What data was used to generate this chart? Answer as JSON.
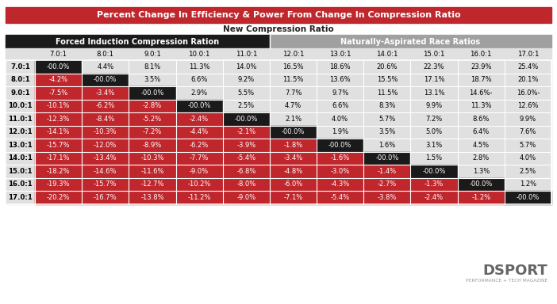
{
  "title": "Percent Change In Efficiency & Power From Change In Compression Ratio",
  "subtitle": "New Compression Ratio",
  "header_left": "Forced Induction Compression Ration",
  "header_right": "Naturally-Aspirated Race Ratios",
  "col_headers": [
    "7.0:1",
    "8.0:1",
    "9.0:1",
    "10.0:1",
    "11.0:1",
    "12.0:1",
    "13.0:1",
    "14.0:1",
    "15.0:1",
    "16.0:1",
    "17.0:1"
  ],
  "row_headers": [
    "7.0:1",
    "8.0:1",
    "9.0:1",
    "10.0:1",
    "11.0:1",
    "12.0:1",
    "13.0:1",
    "14.0:1",
    "15.0:1",
    "16.0:1",
    "17.0:1"
  ],
  "table_data": [
    [
      "-00.0%",
      "4.4%",
      "8.1%",
      "11.3%",
      "14.0%",
      "16.5%",
      "18.6%",
      "20.6%",
      "22.3%",
      "23.9%",
      "25.4%"
    ],
    [
      "-4.2%",
      "-00.0%",
      "3.5%",
      "6.6%",
      "9.2%",
      "11.5%",
      "13.6%",
      "15.5%",
      "17.1%",
      "18.7%",
      "20.1%"
    ],
    [
      "-7.5%",
      "-3.4%",
      "-00.0%",
      "2.9%",
      "5.5%",
      "7.7%",
      "9.7%",
      "11.5%",
      "13.1%",
      "14.6%-",
      "16.0%-"
    ],
    [
      "-10.1%",
      "-6.2%",
      "-2.8%",
      "-00.0%",
      "2.5%",
      "4.7%",
      "6.6%",
      "8.3%",
      "9.9%",
      "11.3%",
      "12.6%"
    ],
    [
      "-12.3%",
      "-8.4%",
      "-5.2%",
      "-2.4%",
      "-00.0%",
      "2.1%",
      "4.0%",
      "5.7%",
      "7.2%",
      "8.6%",
      "9.9%"
    ],
    [
      "-14.1%",
      "-10.3%",
      "-7.2%",
      "-4.4%",
      "-2.1%",
      "-00.0%",
      "1.9%",
      "3.5%",
      "5.0%",
      "6.4%",
      "7.6%"
    ],
    [
      "-15.7%",
      "-12.0%",
      "-8.9%",
      "-6.2%",
      "-3.9%",
      "-1.8%",
      "-00.0%",
      "1.6%",
      "3.1%",
      "4.5%",
      "5.7%"
    ],
    [
      "-17.1%",
      "-13.4%",
      "-10.3%",
      "-7.7%",
      "-5.4%",
      "-3.4%",
      "-1.6%",
      "-00.0%",
      "1.5%",
      "2.8%",
      "4.0%"
    ],
    [
      "-18.2%",
      "-14.6%",
      "-11.6%",
      "-9.0%",
      "-6.8%",
      "-4.8%",
      "-3.0%",
      "-1.4%",
      "-00.0%",
      "1.3%",
      "2.5%"
    ],
    [
      "-19.3%",
      "-15.7%",
      "-12.7%",
      "-10.2%",
      "-8.0%",
      "-6.0%",
      "-4.3%",
      "-2.7%",
      "-1.3%",
      "-00.0%",
      "1.2%"
    ],
    [
      "-20.2%",
      "-16.7%",
      "-13.8%",
      "-11.2%",
      "-9.0%",
      "-7.1%",
      "-5.4%",
      "-3.8%",
      "-2.4%",
      "-1.2%",
      "-00.0%"
    ]
  ],
  "color_title_bg": "#c0272d",
  "color_title_text": "#ffffff",
  "color_header_left_bg": "#1a1a1a",
  "color_header_left_text": "#ffffff",
  "color_header_right_bg": "#a0a0a0",
  "color_header_right_text": "#ffffff",
  "color_col_header_bg": "#e0e0e0",
  "color_col_header_text": "#000000",
  "color_negative_bg": "#c0272d",
  "color_negative_text": "#ffffff",
  "color_positive_bg": "#e0e0e0",
  "color_positive_text": "#000000",
  "color_diagonal_bg": "#1a1a1a",
  "color_diagonal_text": "#ffffff",
  "color_border": "#ffffff",
  "subtitle_text": "#222222",
  "bg_color": "#ffffff",
  "dsport_color": "#666666",
  "dsport_sub_color": "#999999",
  "fi_cols": 5,
  "na_cols": 6,
  "n_rows": 11,
  "n_cols": 11
}
